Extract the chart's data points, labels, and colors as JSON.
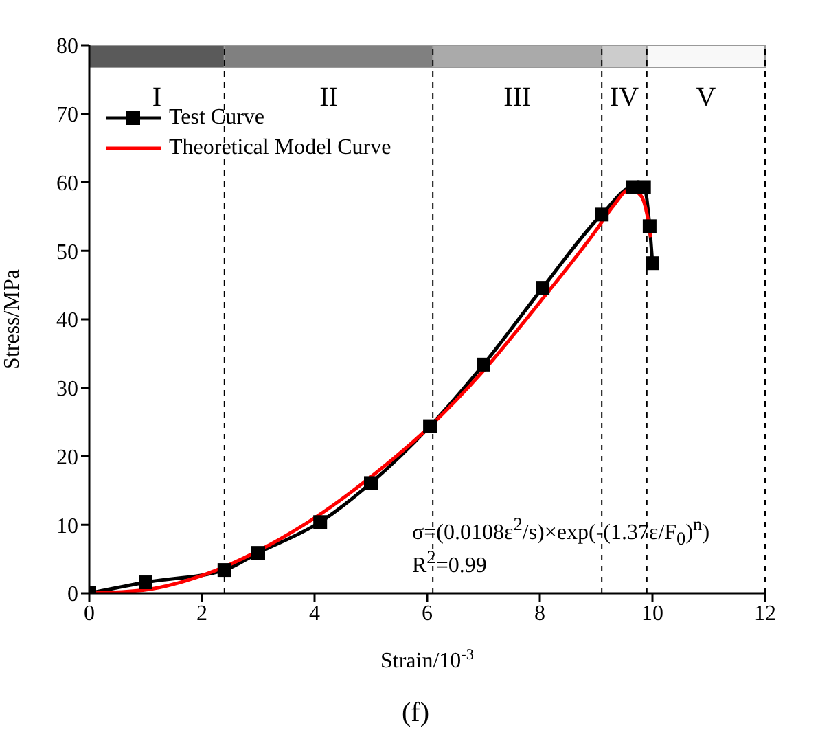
{
  "chart_data": {
    "type": "line",
    "xlabel": "Strain/10$^{-3}$",
    "ylabel": "Stress/MPa",
    "xlim": [
      0,
      12
    ],
    "xticks": [
      0,
      2,
      4,
      6,
      8,
      10,
      12
    ],
    "ylim": [
      0,
      80
    ],
    "yticks": [
      0,
      10,
      20,
      30,
      40,
      50,
      60,
      70,
      80
    ],
    "grid": false,
    "legend": "top left",
    "series": [
      {
        "name": "Test Curve",
        "color": "#000000",
        "marker": "square",
        "x": [
          0,
          1,
          2.4,
          3,
          4.1,
          5,
          6.05,
          7,
          8.05,
          9.1,
          9.65,
          9.85,
          9.95,
          10
        ],
        "values": [
          0,
          1.6,
          3.4,
          5.9,
          10.4,
          16.1,
          24.4,
          33.4,
          44.6,
          55.3,
          59.3,
          59.3,
          53.6,
          48.2
        ]
      },
      {
        "name": "Theoretical Model Curve",
        "color": "#ff0000",
        "marker": "none",
        "x": [
          0,
          1,
          2,
          3,
          4,
          5,
          6,
          7,
          8,
          9,
          9.3,
          9.6,
          9.8,
          9.9,
          9.97
        ],
        "values": [
          0,
          0.5,
          2.6,
          6.2,
          11,
          17,
          24,
          32.5,
          42.5,
          53,
          56.5,
          59,
          58,
          55.5,
          52
        ]
      }
    ],
    "bands": [
      {
        "axis": "x",
        "from": 0,
        "to": 2.4,
        "label": "I",
        "color": "#5a5a5a"
      },
      {
        "axis": "x",
        "from": 2.4,
        "to": 6.1,
        "label": "II",
        "color": "#808080"
      },
      {
        "axis": "x",
        "from": 6.1,
        "to": 9.1,
        "label": "III",
        "color": "#aaaaaa"
      },
      {
        "axis": "x",
        "from": 9.1,
        "to": 9.9,
        "label": "IV",
        "color": "#cccccc"
      },
      {
        "axis": "x",
        "from": 9.9,
        "to": 12,
        "label": "V",
        "color": "#f8f8f8"
      }
    ],
    "ref_lines": [
      {
        "axis": "x",
        "value": 2.4,
        "line_style": "dashed"
      },
      {
        "axis": "x",
        "value": 6.1,
        "line_style": "dashed"
      },
      {
        "axis": "x",
        "value": 9.1,
        "line_style": "dashed"
      },
      {
        "axis": "x",
        "value": 9.9,
        "line_style": "dashed"
      },
      {
        "axis": "x",
        "value": 12,
        "line_style": "dashed"
      }
    ],
    "annotations": [
      "σ=(0.0108ε$^{2}$/s)×exp(-(1.37ε/F$_{0}$)$^{n}$)",
      "R$^{2}$=0.99",
      "(f)"
    ]
  }
}
